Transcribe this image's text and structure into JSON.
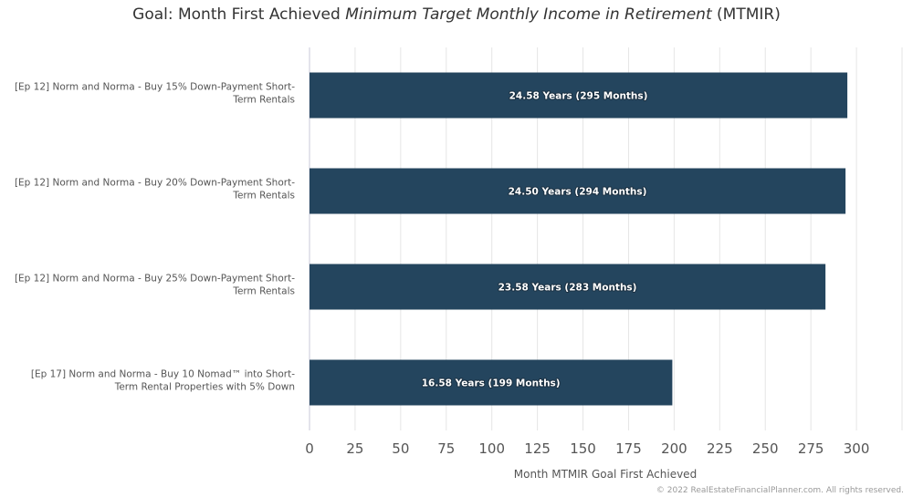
{
  "title": {
    "prefix": "Goal: Month First Achieved ",
    "emphasis": "Minimum Target Monthly Income in Retirement",
    "suffix": " (MTMIR)"
  },
  "chart_data": {
    "type": "bar",
    "orientation": "horizontal",
    "categories": [
      [
        "[Ep 12] Norm and Norma - Buy 15% Down-Payment Short-",
        "Term Rentals"
      ],
      [
        "[Ep 12] Norm and Norma - Buy 20% Down-Payment Short-",
        "Term Rentals"
      ],
      [
        "[Ep 12] Norm and Norma - Buy 25% Down-Payment Short-",
        "Term Rentals"
      ],
      [
        "[Ep 17] Norm and Norma - Buy 10 Nomad™ into Short-",
        "Term Rental Properties with 5% Down"
      ]
    ],
    "values": [
      295,
      294,
      283,
      199
    ],
    "data_labels": [
      "24.58 Years (295 Months)",
      "24.50 Years (294 Months)",
      "23.58 Years (283 Months)",
      "16.58 Years (199 Months)"
    ],
    "xlabel": "Month MTMIR Goal First Achieved",
    "xlim": [
      0,
      325
    ],
    "xticks": [
      0,
      25,
      50,
      75,
      100,
      125,
      150,
      175,
      200,
      225,
      250,
      275,
      300
    ],
    "grid": true,
    "bar_color": "#24455e"
  },
  "credit": "© 2022 RealEstateFinancialPlanner.com. All rights reserved."
}
